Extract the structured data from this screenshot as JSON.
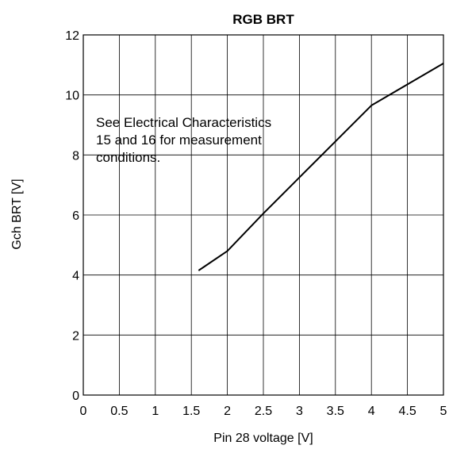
{
  "chart_data": {
    "type": "line",
    "title": "RGB BRT",
    "xlabel": "Pin 28 voltage [V]",
    "ylabel": "Gch BRT [V]",
    "xlim": [
      0,
      5
    ],
    "ylim": [
      0,
      12
    ],
    "x_ticks": [
      "0",
      "0.5",
      "1",
      "1.5",
      "2",
      "2.5",
      "3",
      "3.5",
      "4",
      "4.5",
      "5"
    ],
    "y_ticks": [
      "0",
      "2",
      "4",
      "6",
      "8",
      "10",
      "12"
    ],
    "grid": true,
    "annotation": [
      "See Electrical Characteristics",
      "15 and 16 for measurement",
      "conditions."
    ],
    "series": [
      {
        "x": [
          1.6,
          2.0,
          2.5,
          3.0,
          3.5,
          4.0,
          4.5,
          5.0
        ],
        "y": [
          4.15,
          4.8,
          6.05,
          7.25,
          8.45,
          9.65,
          10.35,
          11.05
        ]
      }
    ],
    "colors": {
      "line": "#000000",
      "grid": "#000000"
    }
  }
}
